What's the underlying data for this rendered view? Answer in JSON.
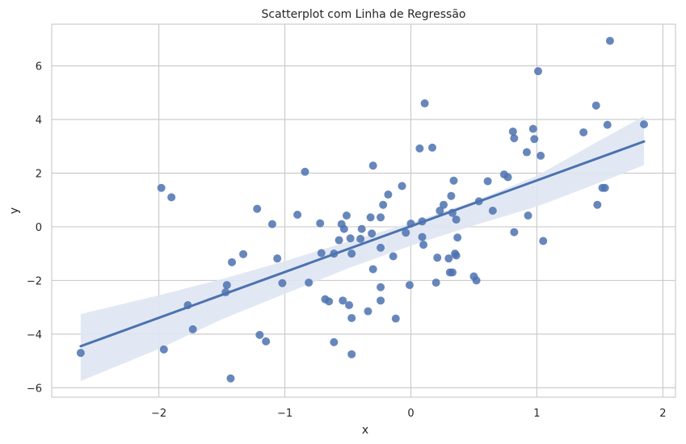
{
  "chart_data": {
    "type": "scatter",
    "title": "Scatterplot com Linha de Regressão",
    "xlabel": "x",
    "ylabel": "y",
    "xlim": [
      -2.85,
      2.1
    ],
    "ylim": [
      -6.35,
      7.55
    ],
    "xticks": [
      -2,
      -1,
      0,
      1,
      2
    ],
    "yticks": [
      -6,
      -4,
      -2,
      0,
      2,
      4,
      6
    ],
    "xtick_labels": [
      "−2",
      "−1",
      "0",
      "1",
      "2"
    ],
    "ytick_labels": [
      "−6",
      "−4",
      "−2",
      "0",
      "2",
      "4",
      "6"
    ],
    "grid": true,
    "colors": {
      "points": "#4c72b0",
      "line": "#4c72b0",
      "band": "#dfe6f2",
      "grid": "#cccccc",
      "frame": "#cccccc"
    },
    "regression": {
      "x": [
        -2.62,
        1.85
      ],
      "y": [
        -4.45,
        3.18
      ],
      "band": {
        "x": [
          -2.62,
          -2.0,
          -1.5,
          -1.0,
          -0.5,
          0.0,
          0.5,
          1.0,
          1.5,
          1.85
        ],
        "upper": [
          -3.25,
          -2.55,
          -1.95,
          -1.28,
          -0.55,
          0.15,
          0.95,
          1.9,
          3.22,
          4.12
        ],
        "lower": [
          -5.75,
          -4.55,
          -3.45,
          -2.5,
          -1.55,
          -0.7,
          0.05,
          0.75,
          1.65,
          2.3
        ]
      }
    },
    "points": [
      {
        "x": -2.62,
        "y": -4.7
      },
      {
        "x": -1.98,
        "y": 1.45
      },
      {
        "x": -1.96,
        "y": -4.57
      },
      {
        "x": -1.9,
        "y": 1.1
      },
      {
        "x": -1.77,
        "y": -2.92
      },
      {
        "x": -1.73,
        "y": -3.82
      },
      {
        "x": -1.46,
        "y": -2.17
      },
      {
        "x": -1.47,
        "y": -2.44
      },
      {
        "x": -1.42,
        "y": -1.32
      },
      {
        "x": -1.43,
        "y": -5.65
      },
      {
        "x": -1.33,
        "y": -1.02
      },
      {
        "x": -1.22,
        "y": 0.67
      },
      {
        "x": -1.2,
        "y": -4.03
      },
      {
        "x": -1.15,
        "y": -4.27
      },
      {
        "x": -1.1,
        "y": 0.1
      },
      {
        "x": -1.06,
        "y": -1.18
      },
      {
        "x": -1.02,
        "y": -2.1
      },
      {
        "x": -0.9,
        "y": 0.45
      },
      {
        "x": -0.84,
        "y": 2.05
      },
      {
        "x": -0.81,
        "y": -2.08
      },
      {
        "x": -0.72,
        "y": 0.13
      },
      {
        "x": -0.71,
        "y": -0.98
      },
      {
        "x": -0.68,
        "y": -2.7
      },
      {
        "x": -0.65,
        "y": -2.78
      },
      {
        "x": -0.61,
        "y": -1.0
      },
      {
        "x": -0.61,
        "y": -4.3
      },
      {
        "x": -0.57,
        "y": -0.5
      },
      {
        "x": -0.55,
        "y": 0.1
      },
      {
        "x": -0.54,
        "y": -2.75
      },
      {
        "x": -0.53,
        "y": -0.08
      },
      {
        "x": -0.51,
        "y": 0.42
      },
      {
        "x": -0.49,
        "y": -2.92
      },
      {
        "x": -0.48,
        "y": -0.43
      },
      {
        "x": -0.47,
        "y": -1.0
      },
      {
        "x": -0.47,
        "y": -3.4
      },
      {
        "x": -0.47,
        "y": -4.75
      },
      {
        "x": -0.4,
        "y": -0.45
      },
      {
        "x": -0.39,
        "y": -0.08
      },
      {
        "x": -0.34,
        "y": -3.15
      },
      {
        "x": -0.32,
        "y": 0.35
      },
      {
        "x": -0.31,
        "y": -0.25
      },
      {
        "x": -0.3,
        "y": 2.28
      },
      {
        "x": -0.3,
        "y": -1.58
      },
      {
        "x": -0.24,
        "y": 0.35
      },
      {
        "x": -0.24,
        "y": -0.78
      },
      {
        "x": -0.24,
        "y": -2.25
      },
      {
        "x": -0.24,
        "y": -2.75
      },
      {
        "x": -0.22,
        "y": 0.82
      },
      {
        "x": -0.18,
        "y": 1.2
      },
      {
        "x": -0.14,
        "y": -1.1
      },
      {
        "x": -0.12,
        "y": -3.42
      },
      {
        "x": -0.07,
        "y": 1.52
      },
      {
        "x": -0.04,
        "y": -0.22
      },
      {
        "x": -0.01,
        "y": -2.17
      },
      {
        "x": 0.0,
        "y": 0.12
      },
      {
        "x": 0.07,
        "y": 2.92
      },
      {
        "x": 0.09,
        "y": 0.2
      },
      {
        "x": 0.09,
        "y": -0.38
      },
      {
        "x": 0.1,
        "y": -0.67
      },
      {
        "x": 0.11,
        "y": 4.6
      },
      {
        "x": 0.17,
        "y": 2.95
      },
      {
        "x": 0.2,
        "y": -2.08
      },
      {
        "x": 0.21,
        "y": -1.15
      },
      {
        "x": 0.23,
        "y": 0.6
      },
      {
        "x": 0.26,
        "y": 0.82
      },
      {
        "x": 0.3,
        "y": -1.18
      },
      {
        "x": 0.31,
        "y": -1.7
      },
      {
        "x": 0.32,
        "y": 1.15
      },
      {
        "x": 0.33,
        "y": -1.7
      },
      {
        "x": 0.33,
        "y": 0.52
      },
      {
        "x": 0.34,
        "y": 1.72
      },
      {
        "x": 0.35,
        "y": -1.0
      },
      {
        "x": 0.36,
        "y": 0.27
      },
      {
        "x": 0.36,
        "y": -1.07
      },
      {
        "x": 0.37,
        "y": -0.4
      },
      {
        "x": 0.5,
        "y": -1.85
      },
      {
        "x": 0.52,
        "y": -2.0
      },
      {
        "x": 0.54,
        "y": 0.95
      },
      {
        "x": 0.61,
        "y": 1.7
      },
      {
        "x": 0.65,
        "y": 0.6
      },
      {
        "x": 0.74,
        "y": 1.95
      },
      {
        "x": 0.77,
        "y": 1.85
      },
      {
        "x": 0.81,
        "y": 3.55
      },
      {
        "x": 0.82,
        "y": 3.3
      },
      {
        "x": 0.82,
        "y": -0.2
      },
      {
        "x": 0.92,
        "y": 2.78
      },
      {
        "x": 0.93,
        "y": 0.42
      },
      {
        "x": 0.97,
        "y": 3.65
      },
      {
        "x": 0.98,
        "y": 3.27
      },
      {
        "x": 1.01,
        "y": 5.8
      },
      {
        "x": 1.03,
        "y": 2.65
      },
      {
        "x": 1.05,
        "y": -0.53
      },
      {
        "x": 1.37,
        "y": 3.52
      },
      {
        "x": 1.47,
        "y": 4.52
      },
      {
        "x": 1.48,
        "y": 0.82
      },
      {
        "x": 1.52,
        "y": 1.45
      },
      {
        "x": 1.54,
        "y": 1.45
      },
      {
        "x": 1.56,
        "y": 3.8
      },
      {
        "x": 1.58,
        "y": 6.93
      },
      {
        "x": 1.85,
        "y": 3.82
      }
    ]
  }
}
